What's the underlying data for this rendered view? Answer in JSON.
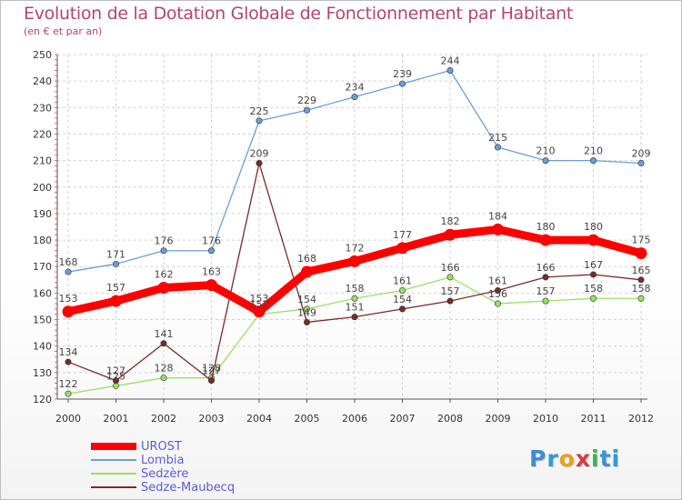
{
  "title": "Evolution de la Dotation Globale de Fonctionnement par Habitant",
  "subtitle": "(en € et par an)",
  "logo": {
    "text": "Proxiti",
    "letters": [
      {
        "ch": "P",
        "color": "#3b8fd9"
      },
      {
        "ch": "r",
        "color": "#2f9bd6"
      },
      {
        "ch": "o",
        "color": "#e9a21a"
      },
      {
        "ch": "x",
        "color": "#d93b3b"
      },
      {
        "ch": "i",
        "color": "#3bb34a"
      },
      {
        "ch": "t",
        "color": "#3b8fd9"
      },
      {
        "ch": "i",
        "color": "#2f9bd6"
      }
    ]
  },
  "chart_data": {
    "type": "line",
    "title": "Evolution de la Dotation Globale de Fonctionnement par Habitant",
    "subtitle": "(en € et par an)",
    "x": [
      "2000",
      "2001",
      "2002",
      "2003",
      "2004",
      "2005",
      "2006",
      "2007",
      "2008",
      "2009",
      "2010",
      "2011",
      "2012"
    ],
    "ylim": [
      120,
      250
    ],
    "yticks": [
      120,
      130,
      140,
      150,
      160,
      170,
      180,
      190,
      200,
      210,
      220,
      230,
      240,
      250
    ],
    "grid": true,
    "legend_position": "bottom-left",
    "series": [
      {
        "name": "UROST",
        "color": "#ff0000",
        "width": "bold",
        "values": [
          153,
          157,
          162,
          163,
          153,
          168,
          172,
          177,
          182,
          184,
          180,
          180,
          175
        ]
      },
      {
        "name": "Lombia",
        "color": "#6b9ed6",
        "width": "thin",
        "values": [
          168,
          171,
          176,
          176,
          225,
          229,
          234,
          239,
          244,
          215,
          210,
          210,
          209
        ]
      },
      {
        "name": "Sedzère",
        "color": "#99e066",
        "width": "thin",
        "values": [
          122,
          125,
          128,
          128,
          152,
          154,
          158,
          161,
          166,
          156,
          157,
          158,
          158
        ]
      },
      {
        "name": "Sedze-Maubecq",
        "color": "#7a2a2a",
        "width": "thin",
        "values": [
          134,
          127,
          141,
          127,
          209,
          149,
          151,
          154,
          157,
          161,
          166,
          167,
          165
        ]
      }
    ],
    "labels": [
      {
        "series": 0,
        "text": [
          "153",
          "157",
          "162",
          "163",
          "153",
          "168",
          "172",
          "177",
          "182",
          "184",
          "180",
          "180",
          "175"
        ]
      },
      {
        "series": 1,
        "text": [
          "168",
          "171",
          "176",
          "176",
          "225",
          "229",
          "234",
          "239",
          "244",
          "215",
          "210",
          "210",
          "209"
        ]
      },
      {
        "series": 2,
        "text": [
          "122",
          "125",
          "128",
          "128",
          "152",
          "154",
          "158",
          "161",
          "166",
          "156",
          "157",
          "158",
          "158"
        ]
      },
      {
        "series": 3,
        "text": [
          "134",
          "127",
          "141",
          "127",
          "209",
          "149",
          "151",
          "154",
          "157",
          "161",
          "166",
          "167",
          "165"
        ]
      }
    ]
  }
}
